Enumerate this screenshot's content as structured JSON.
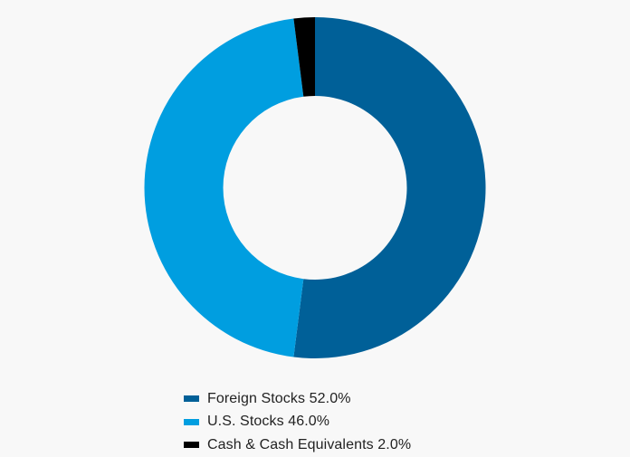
{
  "chart_data": {
    "type": "pie",
    "variant": "donut",
    "title": "",
    "slices": [
      {
        "label": "Foreign Stocks 52.0%",
        "category": "Foreign Stocks",
        "value": 52.0,
        "color": "#006098"
      },
      {
        "label": "U.S. Stocks 46.0%",
        "category": "U.S. Stocks",
        "value": 46.0,
        "color": "#009ee0"
      },
      {
        "label": "Cash & Cash Equivalents 2.0%",
        "category": "Cash & Cash Equivalents",
        "value": 2.0,
        "color": "#000000"
      }
    ],
    "start_angle_deg": 0,
    "direction": "clockwise",
    "legend_position": "bottom"
  },
  "colors": {
    "background": "#f8f8f8"
  }
}
